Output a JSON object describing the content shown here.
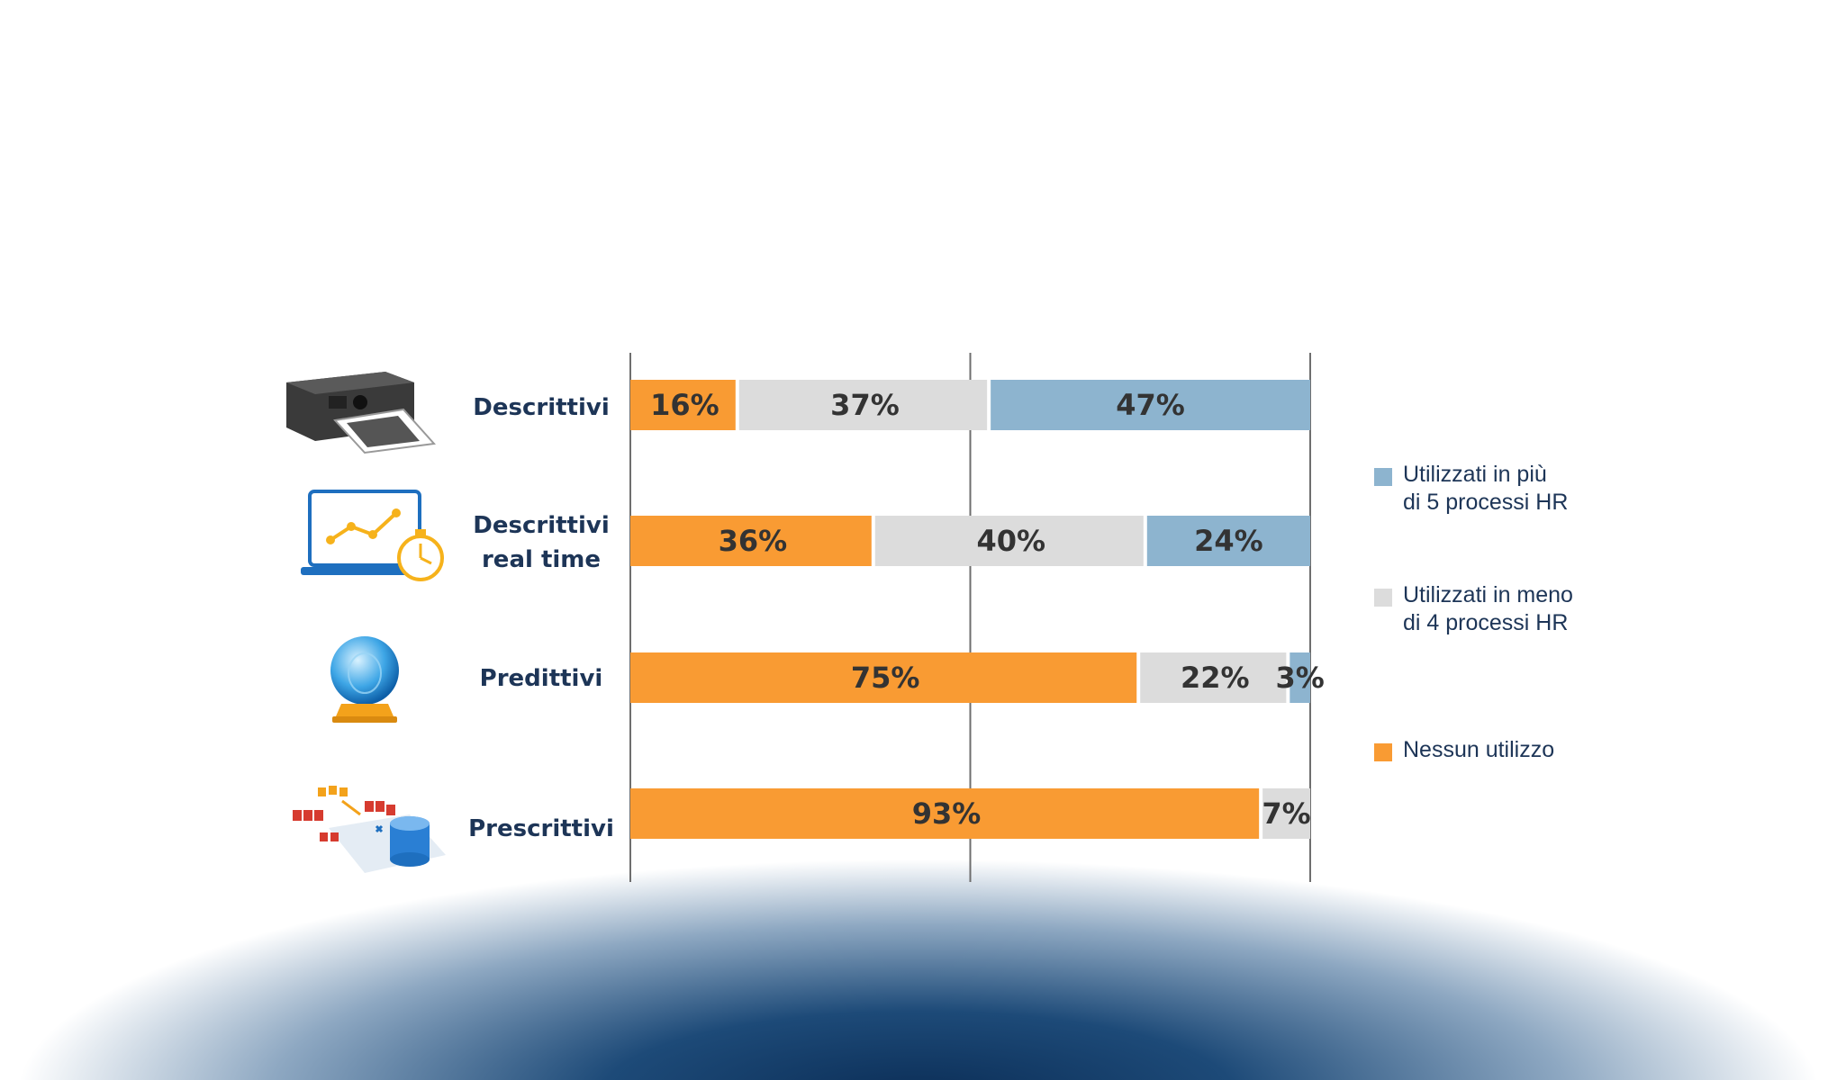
{
  "chart_data": {
    "type": "bar",
    "orientation": "horizontal",
    "stacked": true,
    "categories": [
      "Descrittivi",
      "Descrittivi real time",
      "Predittivi",
      "Prescrittivi"
    ],
    "series": [
      {
        "name": "Nessun utilizzo",
        "color": "#F99B33",
        "values": [
          16,
          36,
          75,
          93
        ],
        "labels": [
          "16%",
          "36%",
          "75%",
          "93%"
        ]
      },
      {
        "name": "Utilizzati in meno di 4 processi HR",
        "color": "#DCDCDC",
        "values": [
          37,
          40,
          22,
          7
        ],
        "labels": [
          "37%",
          "40%",
          "22%",
          "7%"
        ]
      },
      {
        "name": "Utilizzati in più di 5 processi HR",
        "color": "#8DB4CF",
        "values": [
          47,
          24,
          3,
          0
        ],
        "labels": [
          "47%",
          "24%",
          "3%",
          ""
        ]
      }
    ],
    "xlim": [
      0,
      100
    ],
    "grid": true,
    "legend_position": "right"
  },
  "row_labels": [
    {
      "line1": "Descrittivi",
      "line2": ""
    },
    {
      "line1": "Descrittivi",
      "line2": "real time"
    },
    {
      "line1": "Predittivi",
      "line2": ""
    },
    {
      "line1": "Prescrittivi",
      "line2": ""
    }
  ],
  "row_icons": [
    "photo-printer-icon",
    "realtime-laptop-chart-icon",
    "crystal-ball-icon",
    "prescriptive-data-icon"
  ],
  "legend": [
    {
      "line1": "Utilizzati in più",
      "line2": "di 5 processi HR",
      "color": "#8DB4CF"
    },
    {
      "line1": "Utilizzati in meno",
      "line2": "di 4 processi HR",
      "color": "#DCDCDC"
    },
    {
      "line1": "Nessun utilizzo",
      "line2": "",
      "color": "#F99B33"
    }
  ]
}
